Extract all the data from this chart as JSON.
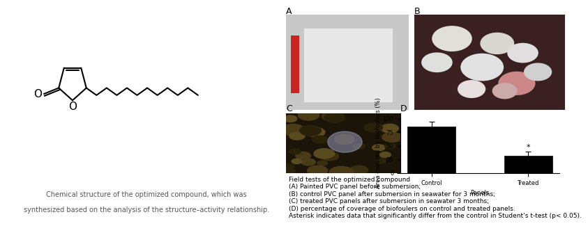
{
  "left_caption_line1": "Chemical structure of the optimized compound, which was",
  "left_caption_line2": "synthesized based on the analysis of the structure–activity relationship.",
  "field_caption_lines": [
    "Field tests of the optimized compound",
    "(A) Painted PVC panel before submersion;",
    "(B) control PVC panel after submersion in seawater for 3 months;",
    "(C) treated PVC panels after submersion in seawater 3 months;",
    "(D) percentage of coverage of biofoulers on control and treated panels.",
    "Asterisk indicates data that significantly differ from the control in Student’s t-test (p< 0.05)."
  ],
  "bar_categories": [
    "Control",
    "Treated"
  ],
  "bar_values": [
    85,
    32
  ],
  "bar_errors": [
    10,
    8
  ],
  "bar_color": "#000000",
  "ylabel": "Area covered by biofoulers (%)",
  "xlabel": "Panels",
  "ylim": [
    0,
    110
  ],
  "panel_label_D": "D",
  "panel_label_A": "A",
  "panel_label_B": "B",
  "panel_label_C": "C",
  "background_color": "#ffffff",
  "caption_fontsize": 7,
  "axis_fontsize": 6,
  "tick_fontsize": 6
}
